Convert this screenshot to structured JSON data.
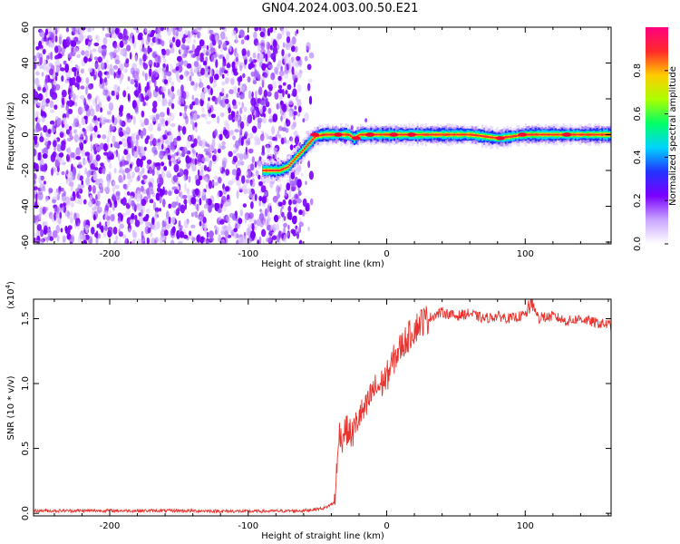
{
  "figure": {
    "title": "GN04.2024.003.00.50.E21"
  },
  "chart_data": [
    {
      "type": "heatmap",
      "title": "",
      "xlabel": "Height of straight line (km)",
      "ylabel": "Frequency (Hz)",
      "xlim": [
        -255,
        162
      ],
      "ylim": [
        -61,
        60
      ],
      "xticks": [
        -200,
        -100,
        0,
        100
      ],
      "yticks": [
        60,
        40,
        20,
        0,
        -20,
        -40,
        -60
      ],
      "xtick_labels": [
        "-200",
        "-100",
        "0",
        "100"
      ],
      "ytick_labels": [
        "60",
        "40",
        "20",
        "0",
        "-20",
        "-40",
        "-60"
      ],
      "noise_region_x": [
        -255,
        -62
      ],
      "ridge": {
        "x": [
          -90,
          -78,
          -72,
          -65,
          -58,
          -52,
          -46,
          -40,
          -34,
          -28,
          -24,
          -20,
          -15,
          -10,
          0,
          10,
          20,
          40,
          60,
          80,
          100,
          120,
          140,
          162
        ],
        "y": [
          -20,
          -20,
          -18,
          -12,
          -6,
          -1,
          0,
          0,
          0,
          0,
          -2,
          0,
          0,
          0,
          0,
          0,
          0,
          0,
          0,
          -2,
          0,
          0,
          0,
          0
        ]
      },
      "colorbar": {
        "label": "Normalized spectral amplitude",
        "ticks": [
          "0.0",
          "0.2",
          "0.4",
          "0.6",
          "0.8"
        ],
        "tick_values": [
          0.0,
          0.2,
          0.4,
          0.6,
          0.8
        ],
        "range": [
          0,
          1
        ],
        "colors": [
          "#ffffff",
          "#c9a6ff",
          "#7a00ff",
          "#2233ff",
          "#00d4ff",
          "#00ff66",
          "#aaff00",
          "#ffcc00",
          "#ff2a2a",
          "#ff0080"
        ]
      }
    },
    {
      "type": "line",
      "title": "",
      "xlabel": "Height of straight line (km)",
      "ylabel": "SNR (10 * v/v)",
      "y_multiplier": "(x10",
      "y_multiplier_exp": "4",
      "y_multiplier_close": ")",
      "xlim": [
        -255,
        162
      ],
      "ylim": [
        -0.02,
        1.65
      ],
      "xticks": [
        -200,
        -100,
        0,
        100
      ],
      "yticks": [
        0.0,
        0.5,
        1.0,
        1.5
      ],
      "xtick_labels": [
        "-200",
        "-100",
        "0",
        "100"
      ],
      "ytick_labels": [
        "0.0",
        "0.5",
        "1.0",
        "1.5"
      ],
      "color": "#e8342f",
      "series": [
        {
          "name": "SNR",
          "x": [
            -255,
            -200,
            -150,
            -100,
            -60,
            -45,
            -38,
            -35,
            -34,
            -33,
            -30,
            -25,
            -20,
            -15,
            -10,
            -5,
            0,
            5,
            10,
            15,
            20,
            25,
            30,
            35,
            40,
            50,
            60,
            70,
            80,
            90,
            100,
            105,
            110,
            120,
            130,
            140,
            150,
            162
          ],
          "values": [
            0.02,
            0.02,
            0.02,
            0.015,
            0.02,
            0.04,
            0.08,
            0.45,
            0.72,
            0.55,
            0.65,
            0.6,
            0.75,
            0.8,
            0.95,
            0.98,
            1.05,
            1.18,
            1.28,
            1.35,
            1.42,
            1.48,
            1.5,
            1.53,
            1.55,
            1.52,
            1.54,
            1.5,
            1.52,
            1.5,
            1.53,
            1.6,
            1.5,
            1.52,
            1.48,
            1.5,
            1.47,
            1.45
          ]
        }
      ]
    }
  ]
}
